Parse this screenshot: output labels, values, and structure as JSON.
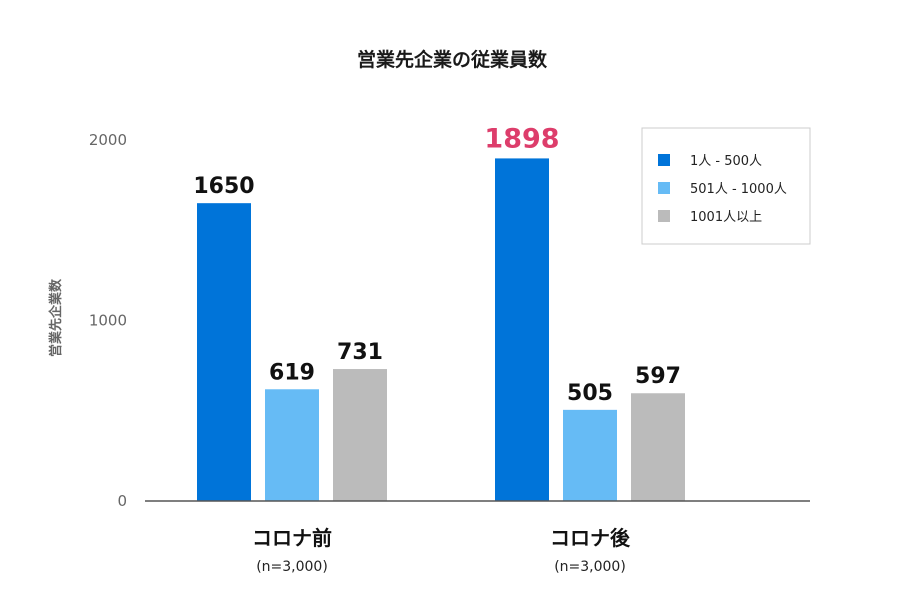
{
  "chart_data": {
    "type": "bar",
    "title": "営業先企業の従業員数",
    "xlabel": "",
    "ylabel": "営業先企業数",
    "ylim": [
      0,
      2000
    ],
    "yticks": [
      0,
      1000,
      2000
    ],
    "grid": false,
    "legend_position": "top-right",
    "categories": [
      "コロナ前",
      "コロナ後"
    ],
    "category_notes": [
      "(n=3,000)",
      "(n=3,000)"
    ],
    "series": [
      {
        "name": "1人 - 500人",
        "color": "#0074d9",
        "values": [
          1650,
          1898
        ],
        "labels": [
          "1650",
          "1898"
        ]
      },
      {
        "name": "501人 - 1000人",
        "color": "#66bbf5",
        "values": [
          619,
          505
        ],
        "labels": [
          "619",
          "505"
        ]
      },
      {
        "name": "1001人以上",
        "color": "#bbbbbb",
        "values": [
          731,
          597
        ],
        "labels": [
          "731",
          "597"
        ]
      }
    ],
    "highlight": {
      "label": "1898",
      "color": "#dd3d6b"
    }
  }
}
